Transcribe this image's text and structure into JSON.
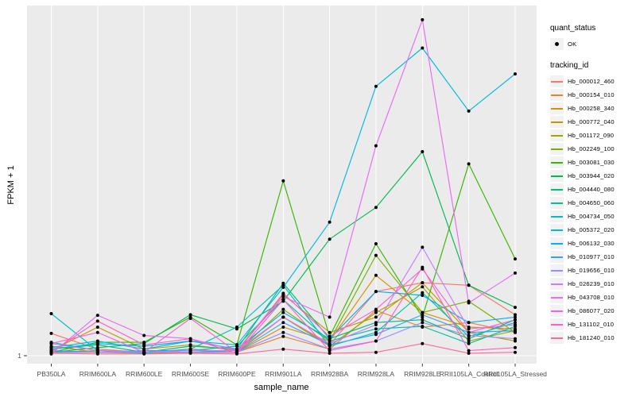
{
  "figure": {
    "background": "#FFFFFF",
    "panel_bg": "#EBEBEB",
    "grid_color": "#FFFFFF",
    "axis_text_color": "#4D4D4D",
    "tick_color": "#333333",
    "point_color": "#000000",
    "legend_key_bg": "#F2F2F2"
  },
  "legend": {
    "quant_status_title": "quant_status",
    "quant_status_items": [
      {
        "label": "OK",
        "shape": "point",
        "color": "#000000"
      }
    ],
    "tracking_title": "tracking_id"
  },
  "chart_data": {
    "type": "line",
    "title": "",
    "xlabel": "sample_name",
    "ylabel": "FPKM + 1",
    "y_scale": "log10",
    "y_ticks": [
      {
        "value": 1,
        "label": "1"
      }
    ],
    "ylim_log10": [
      -0.1,
      4.2
    ],
    "grid": "vertical-per-category-plus-y1",
    "legend_position": "right",
    "marker": "black-point-all-vertices",
    "categories": [
      "PB350LA",
      "RRIM600LA",
      "RRIM600LE",
      "RRIM600SE",
      "RRIM600PE",
      "RRIM901LA",
      "RRIM928BA",
      "RRIM928LA",
      "RRIM928LE",
      "RRII105LA_Control",
      "RRII105LA_Stressed"
    ],
    "series": [
      {
        "name": "Hb_000012_460",
        "color": "#F8766D",
        "values": [
          1.85,
          1.2,
          1.1,
          1.2,
          1.1,
          2.9,
          1.35,
          5.9,
          7.5,
          7.0,
          3.1
        ]
      },
      {
        "name": "Hb_000154_010",
        "color": "#EA8331",
        "values": [
          1.1,
          1.15,
          1.1,
          1.15,
          1.1,
          1.7,
          1.2,
          3.5,
          2.2,
          2.5,
          1.9
        ]
      },
      {
        "name": "Hb_000258_340",
        "color": "#D89000",
        "values": [
          1.3,
          1.1,
          1.1,
          1.1,
          1.1,
          2.2,
          1.5,
          9.2,
          3.3,
          2.2,
          2.1
        ]
      },
      {
        "name": "Hb_000772_040",
        "color": "#C09B00",
        "values": [
          1.15,
          2.2,
          1.2,
          1.35,
          1.15,
          5.4,
          1.9,
          2.9,
          7.5,
          1.9,
          1.5
        ]
      },
      {
        "name": "Hb_001172_090",
        "color": "#A3A500",
        "values": [
          1.1,
          1.1,
          1.07,
          1.1,
          1.1,
          2.9,
          1.3,
          3.3,
          6.7,
          1.5,
          2.0
        ]
      },
      {
        "name": "Hb_002249_100",
        "color": "#7CAE00",
        "values": [
          1.1,
          1.1,
          1.1,
          1.1,
          1.1,
          3.6,
          1.5,
          16,
          3.3,
          4.5,
          1.9
        ]
      },
      {
        "name": "Hb_003081_030",
        "color": "#39B600",
        "values": [
          1.1,
          1.45,
          1.45,
          2.9,
          1.35,
          125,
          1.7,
          22,
          2.9,
          200,
          14.5
        ]
      },
      {
        "name": "Hb_003944_020",
        "color": "#00BB4E",
        "values": [
          1.1,
          1.25,
          1.4,
          3.1,
          2.1,
          4.5,
          25,
          60,
          280,
          7.0,
          3.8
        ]
      },
      {
        "name": "Hb_004440_080",
        "color": "#00BF7D",
        "values": [
          1.2,
          1.35,
          1.1,
          1.3,
          1.2,
          7.4,
          1.6,
          2.5,
          2.7,
          1.6,
          2.7
        ]
      },
      {
        "name": "Hb_004650_060",
        "color": "#00C1A3",
        "values": [
          1.45,
          1.15,
          1.1,
          1.15,
          1.3,
          4.7,
          1.5,
          2.1,
          2.25,
          1.4,
          2.25
        ]
      },
      {
        "name": "Hb_004734_050",
        "color": "#00BFC4",
        "values": [
          3.2,
          1.15,
          1.07,
          1.2,
          2.2,
          7.0,
          1.3,
          1.9,
          5.7,
          1.7,
          2.5
        ]
      },
      {
        "name": "Hb_005372_020",
        "color": "#00BADE",
        "values": [
          1.25,
          1.5,
          1.2,
          1.5,
          1.35,
          6.6,
          40,
          1700,
          4900,
          860,
          2400
        ]
      },
      {
        "name": "Hb_006132_030",
        "color": "#00B0F6",
        "values": [
          1.2,
          1.4,
          1.3,
          1.5,
          1.2,
          3.3,
          1.6,
          5.9,
          5.3,
          2.5,
          2.9
        ]
      },
      {
        "name": "Hb_010977_010",
        "color": "#35A2FF",
        "values": [
          1.15,
          1.1,
          1.15,
          1.15,
          1.1,
          2.5,
          1.35,
          1.8,
          3.1,
          1.9,
          2.0
        ]
      },
      {
        "name": "Hb_019656_010",
        "color": "#9590FF",
        "values": [
          1.1,
          1.1,
          1.1,
          1.1,
          1.1,
          1.9,
          1.2,
          1.5,
          2.5,
          1.75,
          1.6
        ]
      },
      {
        "name": "Hb_026239_010",
        "color": "#C77CFF",
        "values": [
          1.4,
          1.15,
          1.1,
          1.15,
          1.15,
          2.9,
          1.4,
          2.35,
          20,
          2.1,
          2.35
        ]
      },
      {
        "name": "Hb_043708_010",
        "color": "#E76BF3",
        "values": [
          1.05,
          3.05,
          1.75,
          1.6,
          1.15,
          5.1,
          2.9,
          330,
          10700,
          4.3,
          9.8
        ]
      },
      {
        "name": "Hb_086077_020",
        "color": "#FA62DB",
        "values": [
          1.4,
          1.9,
          1.1,
          2.8,
          1.1,
          5.6,
          1.7,
          3.6,
          11,
          1.9,
          2.7
        ]
      },
      {
        "name": "Hb_131102_010",
        "color": "#FF61C3",
        "values": [
          1.1,
          2.6,
          1.35,
          1.6,
          1.07,
          4.7,
          1.15,
          1.5,
          11.5,
          1.15,
          1.25
        ]
      },
      {
        "name": "Hb_181240_010",
        "color": "#FF6A98",
        "values": [
          1.07,
          1.05,
          1.05,
          1.07,
          1.05,
          1.2,
          1.07,
          1.1,
          1.4,
          1.07,
          1.1
        ]
      }
    ]
  }
}
